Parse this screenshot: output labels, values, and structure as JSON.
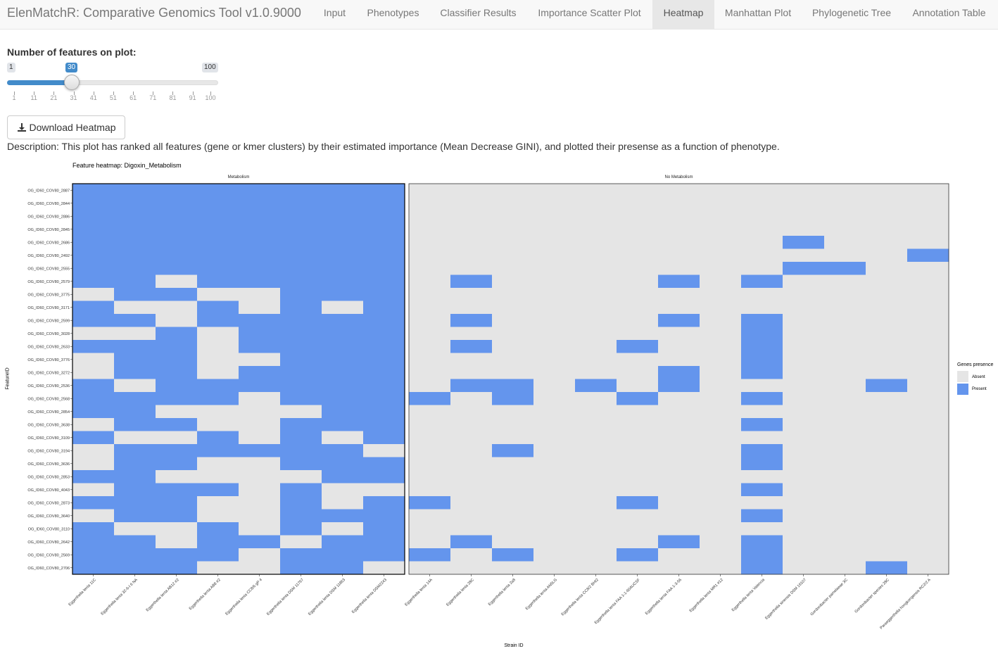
{
  "app": {
    "brand": "ElenMatchR: Comparative Genomics Tool v1.0.9000",
    "tabs": [
      {
        "label": "Input",
        "active": false
      },
      {
        "label": "Phenotypes",
        "active": false
      },
      {
        "label": "Classifier Results",
        "active": false
      },
      {
        "label": "Importance Scatter Plot",
        "active": false
      },
      {
        "label": "Heatmap",
        "active": true
      },
      {
        "label": "Manhattan Plot",
        "active": false
      },
      {
        "label": "Phylogenetic Tree",
        "active": false
      },
      {
        "label": "Annotation Table",
        "active": false
      }
    ]
  },
  "controls": {
    "slider_label": "Number of features on plot:",
    "slider_min": "1",
    "slider_max": "100",
    "slider_value": "30",
    "slider_ticks": [
      "1",
      "11",
      "21",
      "31",
      "41",
      "51",
      "61",
      "71",
      "81",
      "91",
      "100"
    ],
    "download_label": "Download Heatmap",
    "description": "Description: This plot has ranked all features (gene or kmer clusters) by their estimated importance (Mean Decrease GINI), and plotted their presense as a function of phenotype."
  },
  "colors": {
    "present": "#6495ED",
    "absent": "#E5E5E5"
  },
  "chart_data": {
    "type": "heatmap",
    "title": "Feature heatmap: Digoxin_Metabolism",
    "xlabel": "Strain ID",
    "ylabel": "FeatureID",
    "legend": {
      "title": "Genes presence",
      "entries": [
        "Absent",
        "Present"
      ],
      "placement": "right"
    },
    "facets": [
      {
        "name": "Metabolism",
        "strains": [
          "Eggerthella lenta 11C",
          "Eggerthella lenta 32-6-I 6 NA",
          "Eggerthella lenta AB12 #2",
          "Eggerthella lenta AB8 #2",
          "Eggerthella lenta CC8/6 gP 4",
          "Eggerthella lenta DSM 11767",
          "Eggerthella lenta DSM 11863",
          "Eggerthella lenta DSM2243"
        ]
      },
      {
        "name": "No Metabolism",
        "strains": [
          "Eggerthella lenta 14A",
          "Eggerthella lenta 28C",
          "Eggerthella lenta 2a8",
          "Eggerthella lenta AN5LG",
          "Eggerthella lenta CC8/2 BHI2",
          "Eggerthella lenta FAA 1-1-60AUCSF",
          "Eggerthella lenta FAA 1-3-56",
          "Eggerthella lenta MR1 #12",
          "Eggerthella lenta Valencia",
          "Eggerthella sinensis DSM 16107",
          "Gordonibacter pamelaeae 3C",
          "Gordonibacter species 28C",
          "Paraeggerthella hongkongensis RC2/2 A"
        ]
      }
    ],
    "features": [
      "OG_ID60_COV80_2887",
      "OG_ID60_COV80_2844",
      "OG_ID60_COV80_2886",
      "OG_ID60_COV80_2845",
      "OG_ID60_COV80_2686",
      "OG_ID60_COV80_2492",
      "OG_ID60_COV80_2555",
      "OG_ID60_COV80_2579",
      "OG_ID60_COV80_3775",
      "OG_ID60_COV80_3171",
      "OG_ID60_COV80_2599",
      "OG_ID60_COV80_3028",
      "OG_ID60_COV80_2633",
      "OG_ID60_COV80_3776",
      "OG_ID60_COV80_3272",
      "OG_ID60_COV80_2536",
      "OG_ID60_COV80_2568",
      "OG_ID60_COV80_2854",
      "OG_ID60_COV80_3638",
      "OG_ID60_COV80_3109",
      "OG_ID60_COV80_3194",
      "OG_ID60_COV80_3636",
      "OG_ID60_COV80_2853",
      "OG_ID60_COV80_4043",
      "OG_ID60_COV80_2873",
      "OG_ID60_COV80_3640",
      "OG_ID60_COV80_3110",
      "OG_ID60_COV80_2642",
      "OG_ID60_COV80_2569",
      "OG_ID60_COV80_2706"
    ],
    "matrix": [
      [
        1,
        1,
        1,
        1,
        1,
        1,
        1,
        1,
        0,
        0,
        0,
        0,
        0,
        0,
        0,
        0,
        0,
        0,
        0,
        0,
        0
      ],
      [
        1,
        1,
        1,
        1,
        1,
        1,
        1,
        1,
        0,
        0,
        0,
        0,
        0,
        0,
        0,
        0,
        0,
        0,
        0,
        0,
        0
      ],
      [
        1,
        1,
        1,
        1,
        1,
        1,
        1,
        1,
        0,
        0,
        0,
        0,
        0,
        0,
        0,
        0,
        0,
        0,
        0,
        0,
        0
      ],
      [
        1,
        1,
        1,
        1,
        1,
        1,
        1,
        1,
        0,
        0,
        0,
        0,
        0,
        0,
        0,
        0,
        0,
        0,
        0,
        0,
        0
      ],
      [
        1,
        1,
        1,
        1,
        1,
        1,
        1,
        1,
        0,
        0,
        0,
        0,
        0,
        0,
        0,
        0,
        0,
        1,
        0,
        0,
        0
      ],
      [
        1,
        1,
        1,
        1,
        1,
        1,
        1,
        1,
        0,
        0,
        0,
        0,
        0,
        0,
        0,
        0,
        0,
        0,
        0,
        0,
        1
      ],
      [
        1,
        1,
        1,
        1,
        1,
        1,
        1,
        1,
        0,
        0,
        0,
        0,
        0,
        0,
        0,
        0,
        0,
        1,
        1,
        0,
        0
      ],
      [
        1,
        1,
        0,
        1,
        1,
        1,
        1,
        1,
        0,
        1,
        0,
        0,
        0,
        0,
        1,
        0,
        1,
        0,
        0,
        0,
        0
      ],
      [
        0,
        1,
        1,
        0,
        0,
        1,
        1,
        1,
        0,
        0,
        0,
        0,
        0,
        0,
        0,
        0,
        0,
        0,
        0,
        0,
        0
      ],
      [
        1,
        0,
        0,
        1,
        0,
        1,
        0,
        1,
        0,
        0,
        0,
        0,
        0,
        0,
        0,
        0,
        0,
        0,
        0,
        0,
        0
      ],
      [
        1,
        1,
        0,
        1,
        1,
        1,
        1,
        1,
        0,
        1,
        0,
        0,
        0,
        0,
        1,
        0,
        1,
        0,
        0,
        0,
        0
      ],
      [
        0,
        0,
        1,
        0,
        1,
        1,
        1,
        1,
        0,
        0,
        0,
        0,
        0,
        0,
        0,
        0,
        1,
        0,
        0,
        0,
        0
      ],
      [
        1,
        1,
        1,
        0,
        1,
        1,
        1,
        1,
        0,
        1,
        0,
        0,
        0,
        1,
        0,
        0,
        1,
        0,
        0,
        0,
        0
      ],
      [
        0,
        1,
        1,
        0,
        0,
        1,
        1,
        1,
        0,
        0,
        0,
        0,
        0,
        0,
        0,
        0,
        1,
        0,
        0,
        0,
        0
      ],
      [
        0,
        1,
        1,
        0,
        1,
        1,
        1,
        1,
        0,
        0,
        0,
        0,
        0,
        0,
        1,
        0,
        1,
        0,
        0,
        0,
        0
      ],
      [
        1,
        0,
        1,
        1,
        1,
        1,
        1,
        1,
        0,
        1,
        1,
        0,
        1,
        0,
        1,
        0,
        0,
        0,
        0,
        1,
        0
      ],
      [
        1,
        1,
        1,
        1,
        0,
        1,
        1,
        1,
        1,
        0,
        1,
        0,
        0,
        1,
        0,
        0,
        1,
        0,
        0,
        0,
        0
      ],
      [
        1,
        1,
        0,
        0,
        0,
        0,
        1,
        1,
        0,
        0,
        0,
        0,
        0,
        0,
        0,
        0,
        0,
        0,
        0,
        0,
        0
      ],
      [
        0,
        1,
        1,
        0,
        0,
        1,
        1,
        1,
        0,
        0,
        0,
        0,
        0,
        0,
        0,
        0,
        1,
        0,
        0,
        0,
        0
      ],
      [
        1,
        0,
        0,
        1,
        0,
        1,
        0,
        1,
        0,
        0,
        0,
        0,
        0,
        0,
        0,
        0,
        0,
        0,
        0,
        0,
        0
      ],
      [
        0,
        1,
        1,
        1,
        1,
        1,
        1,
        0,
        0,
        0,
        1,
        0,
        0,
        0,
        0,
        0,
        1,
        0,
        0,
        0,
        0
      ],
      [
        0,
        1,
        1,
        0,
        0,
        1,
        1,
        1,
        0,
        0,
        0,
        0,
        0,
        0,
        0,
        0,
        1,
        0,
        0,
        0,
        0
      ],
      [
        1,
        1,
        0,
        0,
        0,
        0,
        1,
        1,
        0,
        0,
        0,
        0,
        0,
        0,
        0,
        0,
        0,
        0,
        0,
        0,
        0
      ],
      [
        0,
        1,
        1,
        1,
        0,
        1,
        0,
        0,
        0,
        0,
        0,
        0,
        0,
        0,
        0,
        0,
        1,
        0,
        0,
        0,
        0
      ],
      [
        1,
        1,
        1,
        0,
        0,
        1,
        0,
        1,
        1,
        0,
        0,
        0,
        0,
        1,
        0,
        0,
        0,
        0,
        0,
        0,
        0
      ],
      [
        0,
        1,
        1,
        0,
        0,
        1,
        1,
        1,
        0,
        0,
        0,
        0,
        0,
        0,
        0,
        0,
        1,
        0,
        0,
        0,
        0
      ],
      [
        1,
        0,
        0,
        1,
        0,
        1,
        0,
        1,
        0,
        0,
        0,
        0,
        0,
        0,
        0,
        0,
        0,
        0,
        0,
        0,
        0
      ],
      [
        1,
        1,
        0,
        1,
        1,
        0,
        1,
        1,
        0,
        1,
        0,
        0,
        0,
        0,
        1,
        0,
        1,
        0,
        0,
        0,
        0
      ],
      [
        1,
        1,
        1,
        1,
        0,
        1,
        1,
        1,
        1,
        0,
        1,
        0,
        0,
        1,
        0,
        0,
        1,
        0,
        0,
        0,
        0
      ],
      [
        1,
        1,
        1,
        0,
        0,
        1,
        1,
        0,
        0,
        0,
        0,
        0,
        0,
        0,
        0,
        0,
        1,
        0,
        0,
        1,
        0
      ]
    ]
  }
}
